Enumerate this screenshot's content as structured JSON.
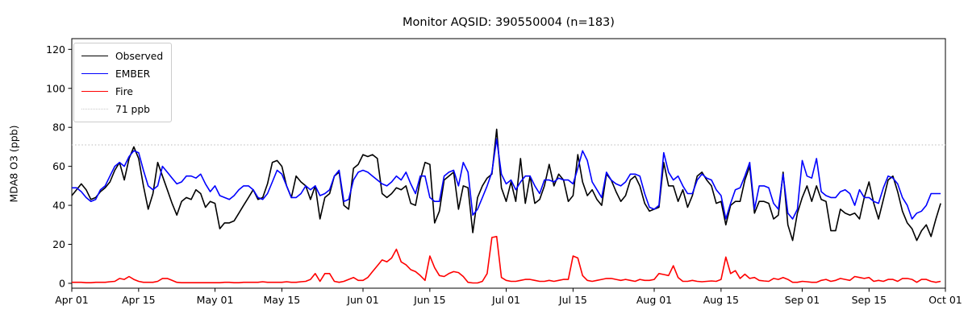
{
  "title": "Monitor AQSID: 390550004 (n=183)",
  "chart_data": {
    "type": "line",
    "title": "Monitor AQSID: 390550004 (n=183)",
    "xlabel": "",
    "ylabel": "MDA8 O3 (ppb)",
    "ylim": [
      -2.5,
      125.5
    ],
    "yticks": [
      0,
      20,
      40,
      60,
      80,
      100,
      120
    ],
    "xtick_labels": [
      "Apr 01",
      "Apr 15",
      "May 01",
      "May 15",
      "Jun 01",
      "Jun 15",
      "Jul 01",
      "Jul 15",
      "Aug 01",
      "Aug 15",
      "Sep 01",
      "Sep 15",
      "Oct 01"
    ],
    "xtick_days": [
      0,
      14,
      30,
      44,
      61,
      75,
      91,
      105,
      122,
      136,
      153,
      167,
      183
    ],
    "n_days": 183,
    "x_range_note": "daily values, Apr 01 through Sep 30",
    "grid": false,
    "legend_position": "upper left",
    "threshold": {
      "value": 71,
      "label": "71 ppb",
      "color": "#c8c8c8",
      "style": "dotted"
    },
    "series": [
      {
        "name": "Observed",
        "color": "#000000",
        "values": [
          45,
          48,
          51,
          48,
          43,
          44,
          47,
          49,
          52,
          58,
          62,
          53,
          64,
          70,
          64,
          50,
          38,
          46,
          62,
          55,
          48,
          41,
          35,
          42,
          44,
          43,
          48,
          46,
          39,
          42,
          41,
          28,
          31,
          31,
          32,
          36,
          40,
          44,
          48,
          43,
          44,
          51,
          62,
          63,
          60,
          50,
          44,
          55,
          52,
          50,
          43,
          50,
          33,
          44,
          46,
          55,
          57,
          40,
          38,
          59,
          61,
          66,
          65,
          66,
          64,
          46,
          44,
          46,
          49,
          48,
          50,
          41,
          40,
          53,
          62,
          61,
          31,
          37,
          53,
          55,
          57,
          38,
          50,
          49,
          26,
          44,
          50,
          54,
          56,
          79,
          49,
          42,
          52,
          42,
          64,
          41,
          55,
          41,
          43,
          50,
          61,
          50,
          56,
          53,
          42,
          45,
          66,
          52,
          45,
          48,
          43,
          40,
          56,
          53,
          47,
          42,
          45,
          53,
          55,
          50,
          41,
          37,
          38,
          39,
          62,
          50,
          50,
          42,
          48,
          39,
          45,
          55,
          57,
          53,
          50,
          41,
          42,
          30,
          40,
          42,
          42,
          53,
          60,
          36,
          42,
          42,
          41,
          33,
          35,
          57,
          30,
          22,
          36,
          44,
          50,
          42,
          50,
          43,
          42,
          27,
          27,
          38,
          36,
          35,
          36,
          33,
          44,
          52,
          41,
          33,
          43,
          53,
          55,
          47,
          37,
          31,
          28,
          22,
          27,
          30,
          24,
          33,
          41
        ]
      },
      {
        "name": "EMBER",
        "color": "#0000ff",
        "values": [
          49,
          49,
          47,
          44,
          42,
          43,
          48,
          50,
          55,
          60,
          62,
          60,
          65,
          68,
          67,
          58,
          50,
          48,
          50,
          60,
          57,
          54,
          51,
          52,
          55,
          55,
          54,
          56,
          51,
          47,
          50,
          45,
          44,
          43,
          45,
          48,
          50,
          50,
          48,
          44,
          43,
          46,
          52,
          58,
          56,
          50,
          44,
          44,
          46,
          50,
          48,
          50,
          45,
          46,
          48,
          55,
          58,
          42,
          43,
          53,
          57,
          58,
          57,
          55,
          53,
          51,
          50,
          52,
          55,
          53,
          57,
          51,
          46,
          55,
          55,
          44,
          42,
          42,
          55,
          57,
          58,
          50,
          62,
          57,
          35,
          38,
          44,
          50,
          57,
          74,
          56,
          51,
          53,
          48,
          52,
          55,
          55,
          50,
          46,
          53,
          53,
          52,
          54,
          53,
          53,
          51,
          59,
          68,
          63,
          52,
          48,
          44,
          57,
          53,
          51,
          50,
          52,
          56,
          56,
          55,
          46,
          39,
          38,
          40,
          67,
          57,
          53,
          55,
          50,
          46,
          46,
          53,
          56,
          54,
          53,
          48,
          45,
          33,
          41,
          48,
          49,
          55,
          62,
          38,
          50,
          50,
          49,
          41,
          38,
          56,
          36,
          33,
          38,
          63,
          55,
          54,
          64,
          47,
          45,
          44,
          44,
          47,
          48,
          46,
          40,
          48,
          44,
          44,
          42,
          41,
          49,
          55,
          54,
          51,
          44,
          40,
          33,
          36,
          37,
          40,
          46,
          46,
          46
        ]
      },
      {
        "name": "Fire",
        "color": "#ff0000",
        "values": [
          0.5,
          0.5,
          0.5,
          0.3,
          0.3,
          0.5,
          0.5,
          0.5,
          0.8,
          1,
          2.5,
          2,
          3.5,
          2,
          1,
          0.5,
          0.5,
          0.5,
          1,
          2.5,
          2.5,
          1.5,
          0.5,
          0.3,
          0.3,
          0.3,
          0.3,
          0.3,
          0.3,
          0.3,
          0.3,
          0.3,
          0.5,
          0.5,
          0.3,
          0.3,
          0.5,
          0.5,
          0.5,
          0.5,
          0.8,
          0.5,
          0.5,
          0.5,
          0.5,
          0.8,
          0.5,
          0.5,
          0.8,
          1,
          2,
          5,
          1,
          5,
          5,
          1,
          0.5,
          1,
          2,
          3,
          1.5,
          1.5,
          3,
          6,
          9,
          12,
          11,
          13,
          17.5,
          11,
          9.5,
          7,
          6,
          4,
          1.5,
          14,
          8,
          4,
          3.5,
          5,
          6,
          5.5,
          3.5,
          0.5,
          0.2,
          0.2,
          1,
          5,
          23.5,
          24,
          3,
          1.5,
          1,
          1,
          1.5,
          2,
          2,
          1.5,
          1,
          1,
          1.5,
          1,
          1.5,
          2,
          2,
          14,
          13,
          4,
          1.5,
          1,
          1.5,
          2,
          2.5,
          2.5,
          2,
          1.5,
          2,
          1.5,
          1,
          2,
          1.5,
          1.5,
          2,
          5,
          4.5,
          4,
          9,
          3,
          1,
          1,
          1.5,
          1,
          0.8,
          1,
          1.2,
          1,
          2,
          13.5,
          5,
          6.5,
          2.5,
          4.7,
          2.5,
          3,
          1.5,
          1.2,
          1,
          2.5,
          2,
          3,
          2,
          0.5,
          0.5,
          1,
          0.8,
          0.5,
          0.5,
          1.5,
          2,
          1,
          1.5,
          2.5,
          2,
          1.5,
          3.5,
          3,
          2.5,
          3,
          1,
          1.5,
          1,
          2,
          2,
          1,
          2.5,
          2.5,
          2,
          0.5,
          2,
          2,
          1,
          0.5,
          1
        ]
      }
    ]
  }
}
